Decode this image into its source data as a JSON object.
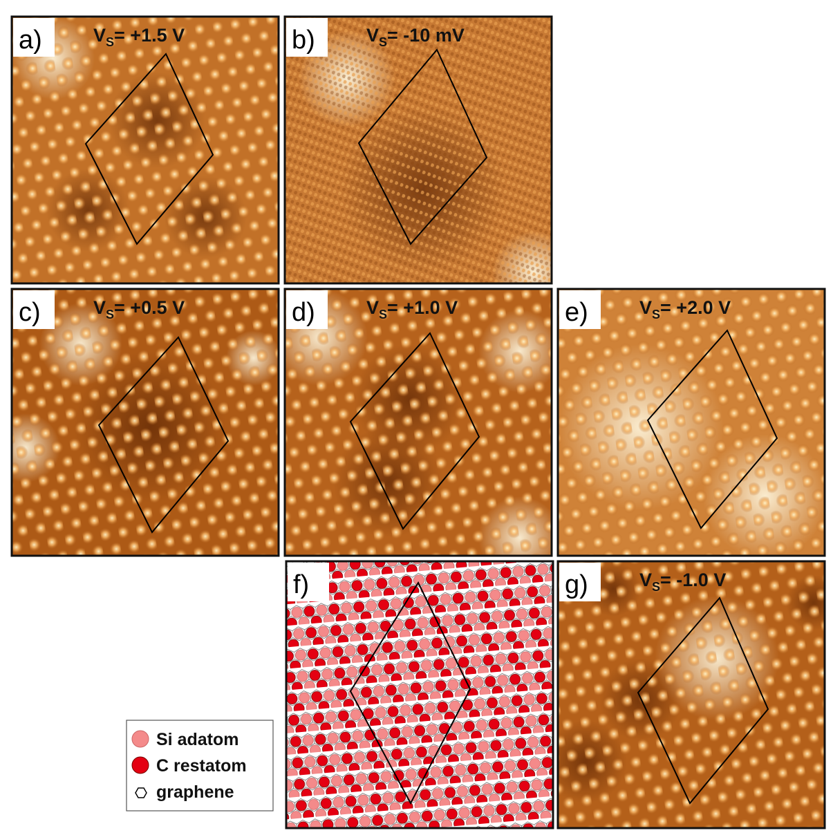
{
  "panels": [
    {
      "label": "a)",
      "bias_symbol": "V",
      "bias_subscript": "S",
      "bias_value": "= +1.5 V"
    },
    {
      "label": "b)",
      "bias_symbol": "V",
      "bias_subscript": "S",
      "bias_value": "= -10 mV"
    },
    {
      "label": "c)",
      "bias_symbol": "V",
      "bias_subscript": "S",
      "bias_value": "= +0.5 V"
    },
    {
      "label": "d)",
      "bias_symbol": "V",
      "bias_subscript": "S",
      "bias_value": "= +1.0 V"
    },
    {
      "label": "e)",
      "bias_symbol": "V",
      "bias_subscript": "S",
      "bias_value": "= +2.0 V"
    },
    {
      "label": "f)"
    },
    {
      "label": "g)",
      "bias_symbol": "V",
      "bias_subscript": "S",
      "bias_value": "= -1.0 V"
    }
  ],
  "legend": [
    "Si adatom",
    "C restatom",
    "graphene"
  ]
}
